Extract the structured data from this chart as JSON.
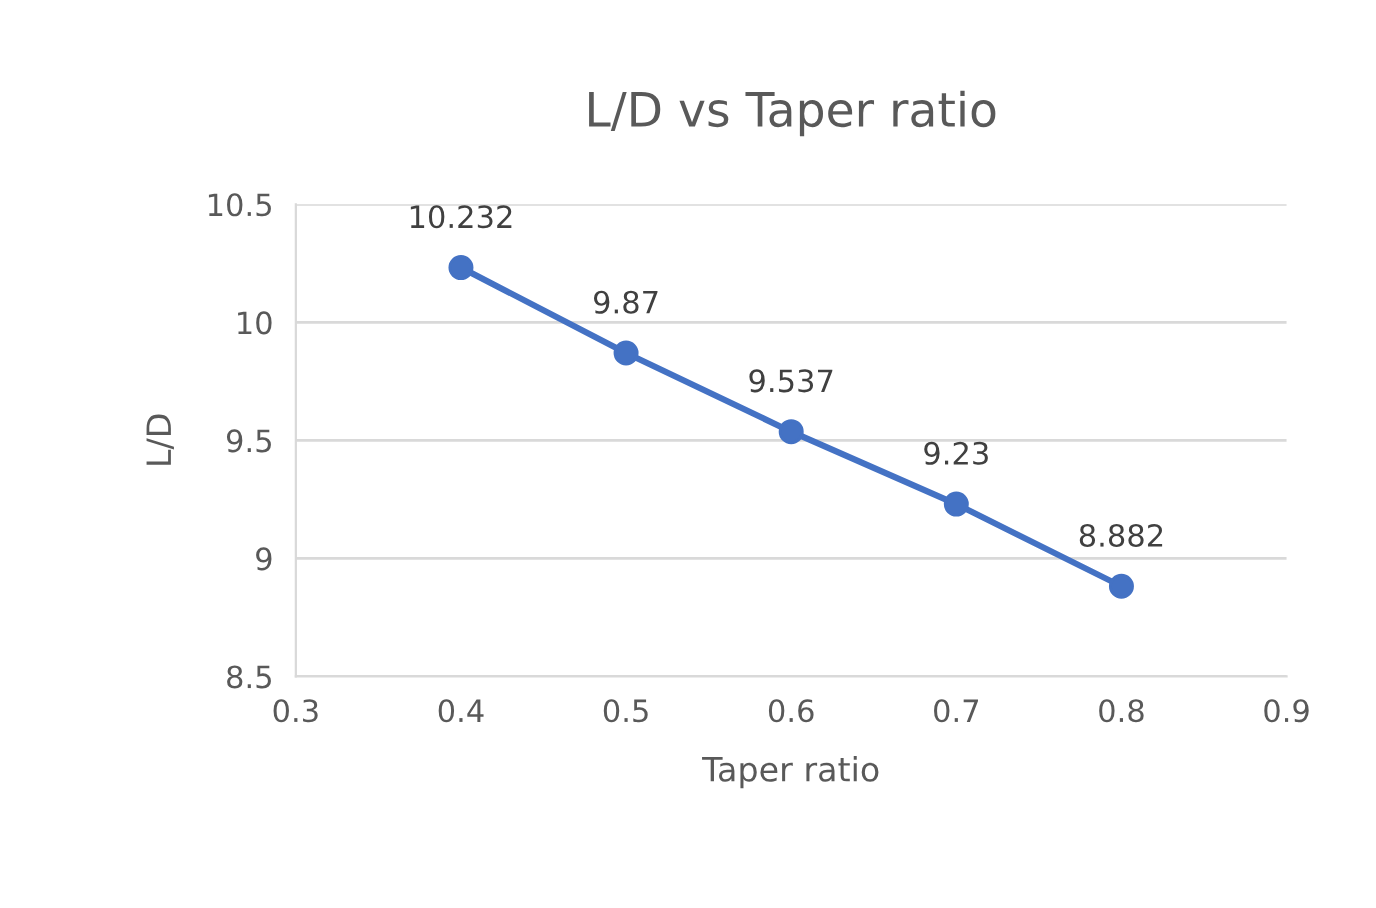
{
  "chart_data": {
    "type": "line",
    "title": "L/D vs Taper ratio",
    "xlabel": "Taper ratio",
    "ylabel": "L/D",
    "x": [
      0.4,
      0.5,
      0.6,
      0.7,
      0.8
    ],
    "series": [
      {
        "color": "#4472c4",
        "values": [
          10.232,
          9.87,
          9.537,
          9.23,
          8.882
        ]
      }
    ],
    "xlim": [
      0.3,
      0.9
    ],
    "xticks": [
      0.3,
      0.4,
      0.5,
      0.6,
      0.7,
      0.8,
      0.9
    ],
    "ylim": [
      8.5,
      10.5
    ],
    "yticks": [
      8.5,
      9,
      9.5,
      10,
      10.5
    ],
    "grid": "y",
    "marker": "circle",
    "line_style": "solid",
    "data_labels": true,
    "legend": false
  }
}
